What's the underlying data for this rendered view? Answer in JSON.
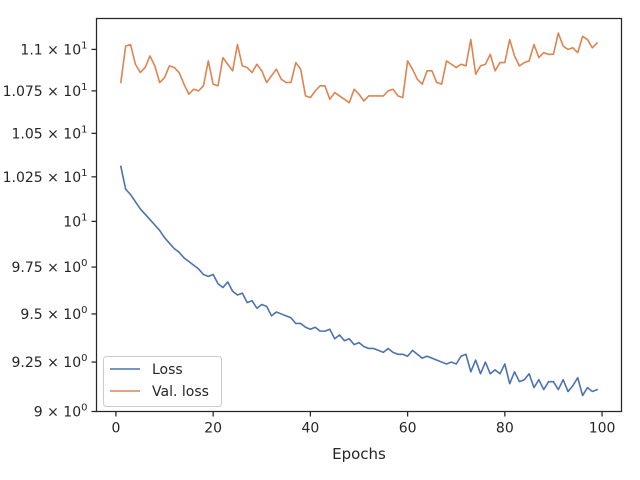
{
  "chart_data": {
    "type": "line",
    "title": "",
    "xlabel": "Epochs",
    "ylabel": "",
    "xlim": [
      -4,
      104
    ],
    "ylim": [
      9.0,
      11.19
    ],
    "yscale": "log",
    "grid": false,
    "legend_position": "lower-left",
    "x_ticks": [
      {
        "value": 0,
        "label": "0"
      },
      {
        "value": 20,
        "label": "20"
      },
      {
        "value": 40,
        "label": "40"
      },
      {
        "value": 60,
        "label": "60"
      },
      {
        "value": 80,
        "label": "80"
      },
      {
        "value": 100,
        "label": "100"
      }
    ],
    "y_ticks": [
      {
        "value": 9.0,
        "label": "9 × 10",
        "sup": "0"
      },
      {
        "value": 9.25,
        "label": "9.25 × 10",
        "sup": "0"
      },
      {
        "value": 9.5,
        "label": "9.5 × 10",
        "sup": "0"
      },
      {
        "value": 9.75,
        "label": "9.75 × 10",
        "sup": "0"
      },
      {
        "value": 10.0,
        "label": "10",
        "sup": "1"
      },
      {
        "value": 10.25,
        "label": "1.025 × 10",
        "sup": "1"
      },
      {
        "value": 10.5,
        "label": "1.05 × 10",
        "sup": "1"
      },
      {
        "value": 10.75,
        "label": "1.075 × 10",
        "sup": "1"
      },
      {
        "value": 11.0,
        "label": "1.1 × 10",
        "sup": "1"
      }
    ],
    "x": [
      1,
      2,
      3,
      4,
      5,
      6,
      7,
      8,
      9,
      10,
      11,
      12,
      13,
      14,
      15,
      16,
      17,
      18,
      19,
      20,
      21,
      22,
      23,
      24,
      25,
      26,
      27,
      28,
      29,
      30,
      31,
      32,
      33,
      34,
      35,
      36,
      37,
      38,
      39,
      40,
      41,
      42,
      43,
      44,
      45,
      46,
      47,
      48,
      49,
      50,
      51,
      52,
      53,
      54,
      55,
      56,
      57,
      58,
      59,
      60,
      61,
      62,
      63,
      64,
      65,
      66,
      67,
      68,
      69,
      70,
      71,
      72,
      73,
      74,
      75,
      76,
      77,
      78,
      79,
      80,
      81,
      82,
      83,
      84,
      85,
      86,
      87,
      88,
      89,
      90,
      91,
      92,
      93,
      94,
      95,
      96,
      97,
      98,
      99
    ],
    "series": [
      {
        "name": "Loss",
        "color": "#4c72b0",
        "values": [
          10.31,
          10.18,
          10.15,
          10.11,
          10.07,
          10.04,
          10.01,
          9.98,
          9.95,
          9.91,
          9.88,
          9.85,
          9.83,
          9.8,
          9.78,
          9.76,
          9.74,
          9.71,
          9.7,
          9.71,
          9.66,
          9.64,
          9.67,
          9.62,
          9.6,
          9.61,
          9.56,
          9.57,
          9.53,
          9.55,
          9.54,
          9.49,
          9.51,
          9.5,
          9.49,
          9.48,
          9.45,
          9.45,
          9.43,
          9.42,
          9.43,
          9.41,
          9.41,
          9.42,
          9.37,
          9.39,
          9.36,
          9.37,
          9.34,
          9.35,
          9.33,
          9.32,
          9.32,
          9.31,
          9.3,
          9.32,
          9.3,
          9.29,
          9.29,
          9.28,
          9.31,
          9.29,
          9.27,
          9.28,
          9.27,
          9.26,
          9.25,
          9.24,
          9.25,
          9.24,
          9.28,
          9.29,
          9.2,
          9.26,
          9.19,
          9.25,
          9.19,
          9.21,
          9.19,
          9.24,
          9.14,
          9.2,
          9.15,
          9.16,
          9.19,
          9.12,
          9.16,
          9.11,
          9.15,
          9.15,
          9.11,
          9.16,
          9.1,
          9.13,
          9.17,
          9.08,
          9.12,
          9.1,
          9.11
        ]
      },
      {
        "name": "Val. loss",
        "color": "#dd8452",
        "values": [
          10.8,
          11.02,
          11.03,
          10.91,
          10.86,
          10.89,
          10.96,
          10.9,
          10.8,
          10.83,
          10.9,
          10.89,
          10.86,
          10.79,
          10.73,
          10.76,
          10.75,
          10.78,
          10.93,
          10.79,
          10.78,
          10.95,
          10.91,
          10.87,
          11.03,
          10.9,
          10.89,
          10.86,
          10.91,
          10.87,
          10.8,
          10.84,
          10.88,
          10.82,
          10.8,
          10.8,
          10.92,
          10.88,
          10.72,
          10.71,
          10.75,
          10.78,
          10.78,
          10.7,
          10.74,
          10.72,
          10.7,
          10.68,
          10.76,
          10.73,
          10.69,
          10.72,
          10.72,
          10.72,
          10.72,
          10.75,
          10.76,
          10.72,
          10.71,
          10.93,
          10.88,
          10.82,
          10.79,
          10.87,
          10.87,
          10.8,
          10.79,
          10.93,
          10.91,
          10.89,
          10.91,
          10.9,
          11.06,
          10.85,
          10.9,
          10.91,
          10.97,
          10.87,
          10.92,
          10.92,
          11.06,
          10.96,
          10.9,
          10.92,
          10.93,
          11.03,
          10.95,
          10.98,
          10.97,
          10.97,
          11.1,
          11.02,
          11.0,
          11.01,
          10.98,
          11.08,
          11.06,
          11.01,
          11.04
        ]
      }
    ]
  }
}
